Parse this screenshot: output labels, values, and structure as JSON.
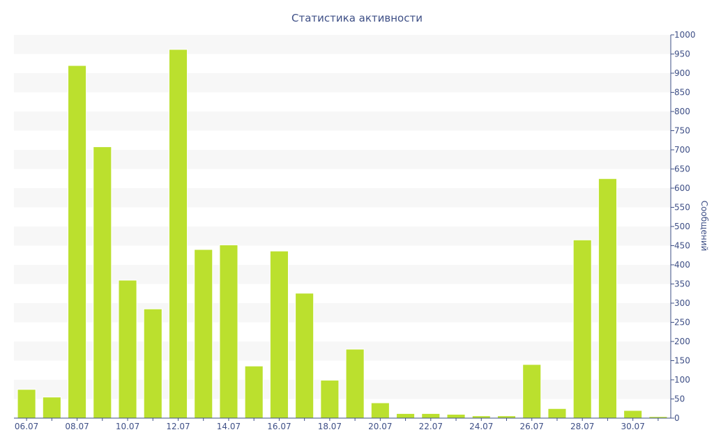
{
  "colors": {
    "bar": "#bbe02e",
    "bar_stroke": "#ffffff",
    "text": "#3e4f86",
    "axis": "#3e4f86",
    "band": "#f7f7f7"
  },
  "chart_data": {
    "type": "bar",
    "title": "Статистика активности",
    "xlabel": "",
    "ylabel": "Сообщений",
    "y_axis_side": "right",
    "ylim": [
      0,
      1000
    ],
    "y_ticks": [
      0,
      50,
      100,
      150,
      200,
      250,
      300,
      350,
      400,
      450,
      500,
      550,
      600,
      650,
      700,
      750,
      800,
      850,
      900,
      950,
      1000
    ],
    "grid": "alternating horizontal bands",
    "categories": [
      "06.07",
      "07.07",
      "08.07",
      "09.07",
      "10.07",
      "11.07",
      "12.07",
      "13.07",
      "14.07",
      "15.07",
      "16.07",
      "17.07",
      "18.07",
      "19.07",
      "20.07",
      "21.07",
      "22.07",
      "23.07",
      "24.07",
      "25.07",
      "26.07",
      "27.07",
      "28.07",
      "29.07",
      "30.07",
      "31.07"
    ],
    "x_tick_labels": [
      "06.07",
      "08.07",
      "10.07",
      "12.07",
      "14.07",
      "16.07",
      "18.07",
      "20.07",
      "22.07",
      "24.07",
      "26.07",
      "28.07",
      "30.07"
    ],
    "values": [
      75,
      55,
      920,
      708,
      360,
      285,
      962,
      440,
      452,
      136,
      436,
      326,
      99,
      180,
      40,
      12,
      12,
      10,
      6,
      6,
      140,
      25,
      465,
      625,
      20,
      4
    ]
  }
}
